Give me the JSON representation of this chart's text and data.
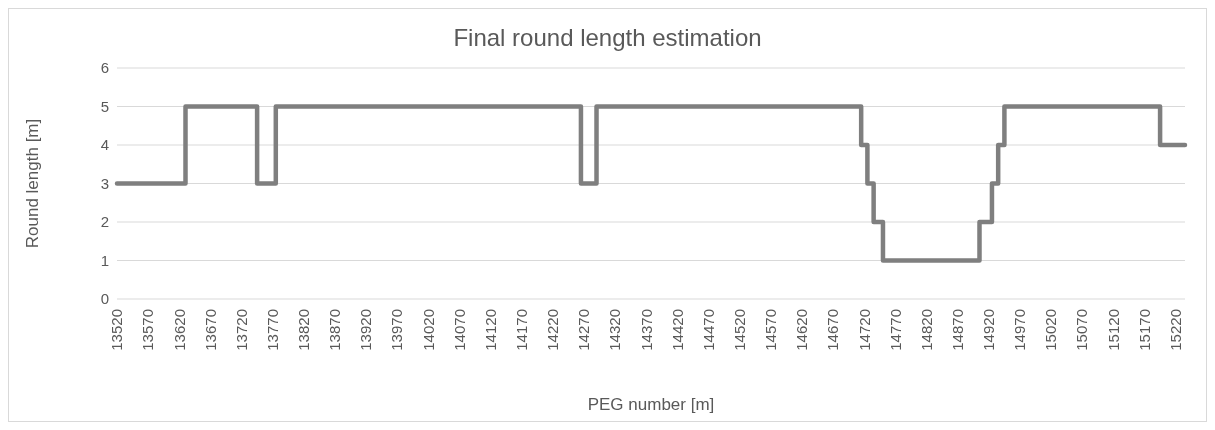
{
  "chart_data": {
    "type": "step",
    "title": "Final round length estimation",
    "xlabel": "PEG number [m]",
    "ylabel": "Round length [m]",
    "series": [
      {
        "color": "#7f7f7f",
        "x": [
          13520,
          13630,
          13745,
          13775,
          14265,
          14290,
          14715,
          14725,
          14735,
          14750,
          14905,
          14925,
          14935,
          14945,
          15195,
          15235
        ],
        "values": [
          3,
          5,
          3,
          5,
          3,
          5,
          4,
          3,
          2,
          1,
          2,
          3,
          4,
          5,
          4,
          4
        ]
      }
    ],
    "xlim": [
      13520,
      15235
    ],
    "xticks": [
      13520,
      13570,
      13620,
      13670,
      13720,
      13770,
      13820,
      13870,
      13920,
      13970,
      14020,
      14070,
      14120,
      14170,
      14220,
      14270,
      14320,
      14370,
      14420,
      14470,
      14520,
      14570,
      14620,
      14670,
      14720,
      14770,
      14820,
      14870,
      14920,
      14970,
      15020,
      15070,
      15120,
      15170,
      15220
    ],
    "ylim": [
      0,
      6
    ],
    "yticks": [
      0,
      1,
      2,
      3,
      4,
      5,
      6
    ],
    "grid": "y",
    "line_style": "solid"
  }
}
